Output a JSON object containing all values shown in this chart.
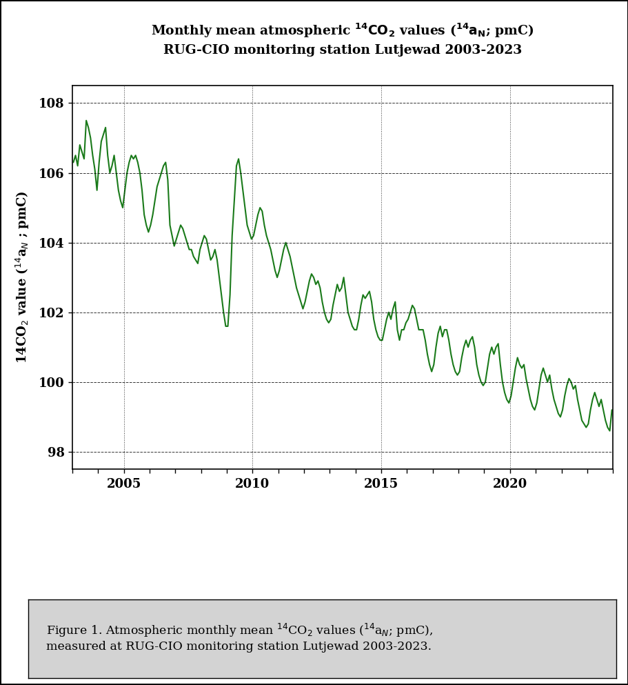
{
  "title_line1": "Monthly mean atmospheric $^{14}$CO$_2$ values ($^{14}$a$_N$; pmC)",
  "title_line2": "RUG-CIO monitoring station Lutjewad 2003-2023",
  "line_color": "#1a7a1a",
  "line_width": 1.5,
  "ylim": [
    97.5,
    108.5
  ],
  "yticks": [
    98,
    100,
    102,
    104,
    106,
    108
  ],
  "xlim_start": 2003.0,
  "xlim_end": 2024.0,
  "caption_bg": "#d3d3d3",
  "months_data": {
    "2003": [
      106.3,
      106.5,
      106.2,
      106.8,
      106.6,
      106.4,
      107.5,
      107.3,
      107.0,
      106.5,
      106.1,
      105.5
    ],
    "2004": [
      106.3,
      106.9,
      107.1,
      107.3,
      106.5,
      106.0,
      106.2,
      106.5,
      106.0,
      105.5,
      105.2,
      105.0
    ],
    "2005": [
      105.5,
      106.0,
      106.3,
      106.5,
      106.4,
      106.5,
      106.3,
      106.0,
      105.5,
      104.8,
      104.5,
      104.3
    ],
    "2006": [
      104.5,
      104.8,
      105.2,
      105.6,
      105.8,
      106.0,
      106.2,
      106.3,
      105.8,
      104.5,
      104.2,
      103.9
    ],
    "2007": [
      104.1,
      104.3,
      104.5,
      104.4,
      104.2,
      104.0,
      103.8,
      103.8,
      103.6,
      103.5,
      103.4,
      103.8
    ],
    "2008": [
      104.0,
      104.2,
      104.1,
      103.8,
      103.5,
      103.6,
      103.8,
      103.5,
      103.0,
      102.5,
      102.0,
      101.6
    ],
    "2009": [
      101.6,
      102.5,
      104.2,
      105.2,
      106.2,
      106.4,
      106.0,
      105.5,
      105.0,
      104.5,
      104.3,
      104.1
    ],
    "2010": [
      104.2,
      104.5,
      104.8,
      105.0,
      104.9,
      104.5,
      104.2,
      104.0,
      103.8,
      103.5,
      103.2,
      103.0
    ],
    "2011": [
      103.2,
      103.5,
      103.8,
      104.0,
      103.8,
      103.6,
      103.3,
      103.0,
      102.7,
      102.5,
      102.3,
      102.1
    ],
    "2012": [
      102.3,
      102.6,
      102.9,
      103.1,
      103.0,
      102.8,
      102.9,
      102.7,
      102.3,
      102.0,
      101.8,
      101.7
    ],
    "2013": [
      101.8,
      102.2,
      102.5,
      102.8,
      102.6,
      102.7,
      103.0,
      102.5,
      102.0,
      101.8,
      101.6,
      101.5
    ],
    "2014": [
      101.5,
      101.8,
      102.2,
      102.5,
      102.4,
      102.5,
      102.6,
      102.3,
      101.8,
      101.5,
      101.3,
      101.2
    ],
    "2015": [
      101.2,
      101.5,
      101.8,
      102.0,
      101.8,
      102.1,
      102.3,
      101.5,
      101.2,
      101.5,
      101.5,
      101.7
    ],
    "2016": [
      101.8,
      102.0,
      102.2,
      102.1,
      101.8,
      101.5,
      101.5,
      101.5,
      101.2,
      100.8,
      100.5,
      100.3
    ],
    "2017": [
      100.5,
      101.0,
      101.4,
      101.6,
      101.3,
      101.5,
      101.5,
      101.2,
      100.8,
      100.5,
      100.3,
      100.2
    ],
    "2018": [
      100.3,
      100.7,
      101.0,
      101.2,
      101.0,
      101.2,
      101.3,
      101.0,
      100.5,
      100.2,
      100.0,
      99.9
    ],
    "2019": [
      100.0,
      100.4,
      100.8,
      101.0,
      100.8,
      101.0,
      101.1,
      100.5,
      100.0,
      99.7,
      99.5,
      99.4
    ],
    "2020": [
      99.6,
      100.0,
      100.4,
      100.7,
      100.5,
      100.4,
      100.5,
      100.1,
      99.8,
      99.5,
      99.3,
      99.2
    ],
    "2021": [
      99.4,
      99.8,
      100.2,
      100.4,
      100.2,
      100.0,
      100.2,
      99.8,
      99.5,
      99.3,
      99.1,
      99.0
    ],
    "2022": [
      99.2,
      99.6,
      99.9,
      100.1,
      100.0,
      99.8,
      99.9,
      99.5,
      99.2,
      98.9,
      98.8,
      98.7
    ],
    "2023": [
      98.8,
      99.2,
      99.5,
      99.7,
      99.5,
      99.3,
      99.5,
      99.2,
      98.9,
      98.7,
      98.6,
      99.2
    ]
  }
}
